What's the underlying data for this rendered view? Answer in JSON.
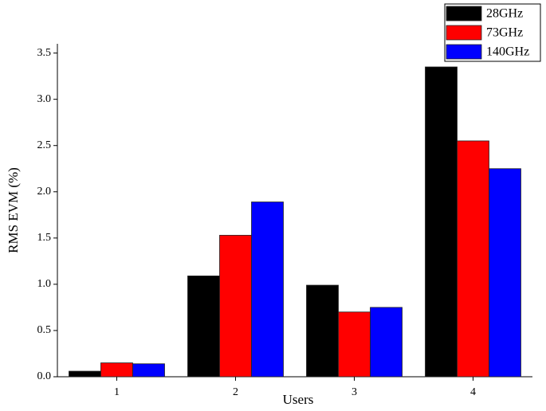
{
  "chart_data": {
    "type": "bar",
    "x_label": "Users",
    "y_label": "RMS EVM (%)",
    "categories": [
      "1",
      "2",
      "3",
      "4"
    ],
    "series": [
      {
        "name": "28GHz",
        "color": "#000000",
        "values": [
          0.06,
          1.09,
          0.99,
          3.35
        ]
      },
      {
        "name": "73GHz",
        "color": "#ff0000",
        "values": [
          0.15,
          1.53,
          0.7,
          2.55
        ]
      },
      {
        "name": "140GHz",
        "color": "#0000ff",
        "values": [
          0.14,
          1.89,
          0.75,
          2.25
        ]
      }
    ],
    "ylim": [
      0,
      3.6
    ],
    "yticks": [
      {
        "value": 0,
        "label": "0.0"
      },
      0.5,
      {
        "value": 1,
        "label": "1.0"
      },
      1.5,
      {
        "value": 2,
        "label": "2.0"
      },
      2.5,
      {
        "value": 3,
        "label": "3.0"
      },
      3.5
    ],
    "legend": "top-right"
  }
}
